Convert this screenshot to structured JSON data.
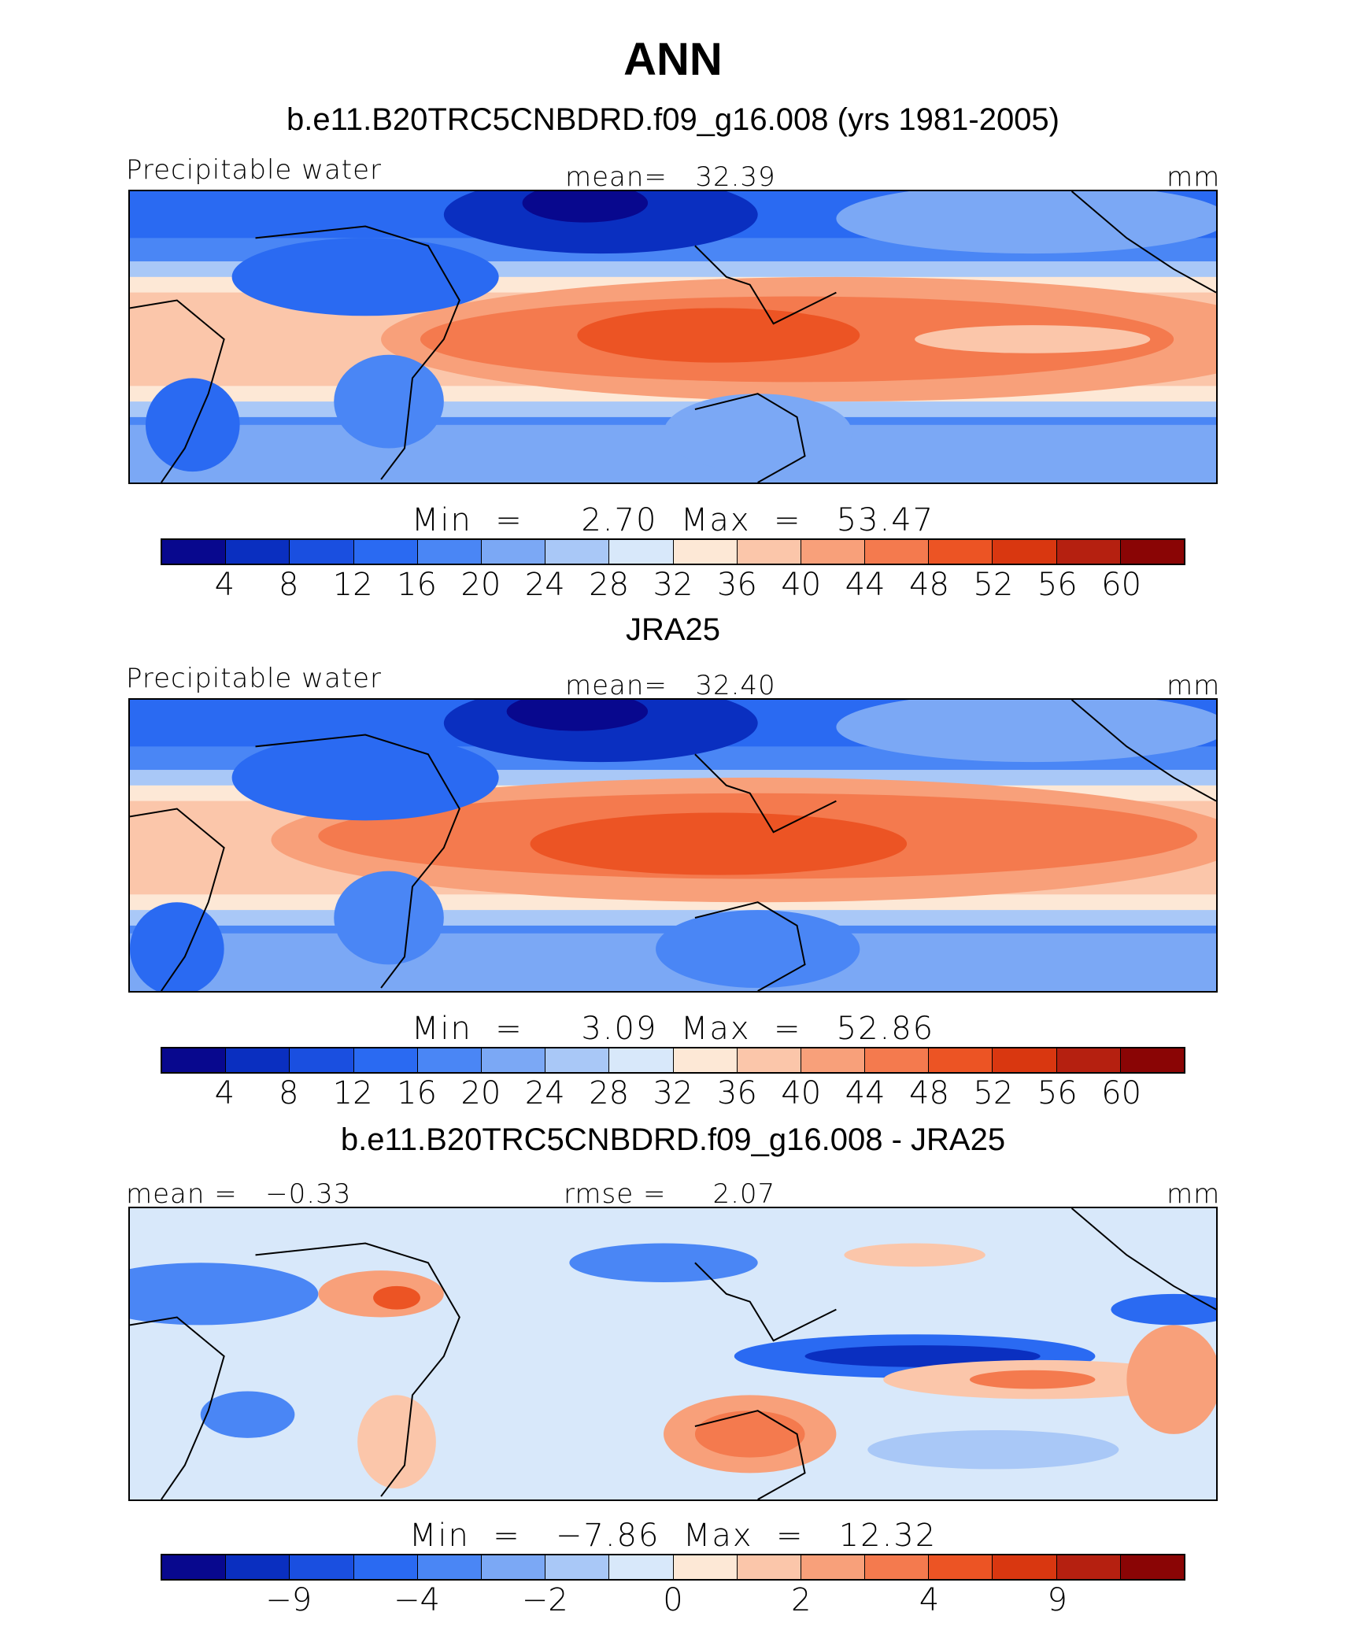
{
  "title": "ANN",
  "panels": [
    {
      "subtitle": "b.e11.B20TRC5CNBDRD.f09_g16.008 (yrs 1981-2005)",
      "left_label": "Precipitable water",
      "center_label": "mean=   32.39",
      "units": "mm",
      "minmax": "Min  =     2.70  Max  =   53.47",
      "colorbar_ticks": [
        "4",
        "8",
        "12",
        "16",
        "20",
        "24",
        "28",
        "32",
        "36",
        "40",
        "44",
        "48",
        "52",
        "56",
        "60"
      ],
      "colors": [
        "#08088e",
        "#0a2fc0",
        "#1a4fe0",
        "#2a6af2",
        "#4a86f5",
        "#7ba8f5",
        "#a9c8f7",
        "#d8e8fa",
        "#fde8d6",
        "#fbc6aa",
        "#f8a07a",
        "#f47a4e",
        "#ec5424",
        "#d93710",
        "#b52010",
        "#8a0505"
      ]
    },
    {
      "subtitle": "JRA25",
      "left_label": "Precipitable water",
      "center_label": "mean=   32.40",
      "units": "mm",
      "minmax": "Min  =     3.09  Max  =   52.86",
      "colorbar_ticks": [
        "4",
        "8",
        "12",
        "16",
        "20",
        "24",
        "28",
        "32",
        "36",
        "40",
        "44",
        "48",
        "52",
        "56",
        "60"
      ],
      "colors": [
        "#08088e",
        "#0a2fc0",
        "#1a4fe0",
        "#2a6af2",
        "#4a86f5",
        "#7ba8f5",
        "#a9c8f7",
        "#d8e8fa",
        "#fde8d6",
        "#fbc6aa",
        "#f8a07a",
        "#f47a4e",
        "#ec5424",
        "#d93710",
        "#b52010",
        "#8a0505"
      ]
    },
    {
      "subtitle": "b.e11.B20TRC5CNBDRD.f09_g16.008 - JRA25",
      "left_label": "mean =   −0.33",
      "center_label": "rmse =     2.07",
      "units": "mm",
      "minmax": "Min  =   −7.86  Max  =   12.32",
      "colorbar_ticks": [
        "−9",
        "−4",
        "−2",
        "0",
        "2",
        "4",
        "9"
      ],
      "colors": [
        "#08088e",
        "#0a2fc0",
        "#1a4fe0",
        "#2a6af2",
        "#4a86f5",
        "#7ba8f5",
        "#a9c8f7",
        "#d8e8fa",
        "#fde8d6",
        "#fbc6aa",
        "#f8a07a",
        "#f47a4e",
        "#ec5424",
        "#d93710",
        "#b52010",
        "#8a0505"
      ]
    }
  ]
}
